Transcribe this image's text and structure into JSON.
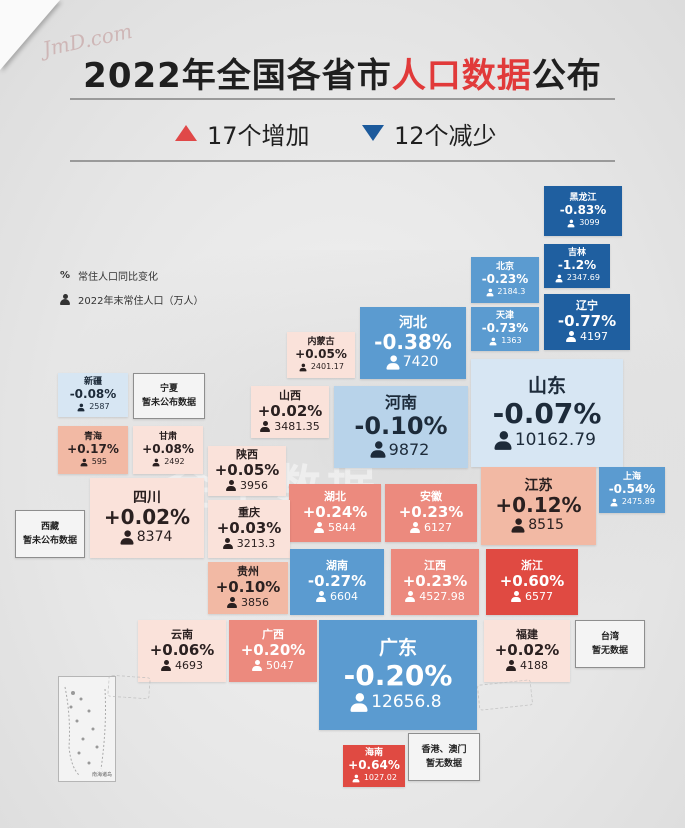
{
  "title": {
    "prefix": "2022年全国各省市",
    "highlight": "人口数据",
    "suffix": "公布"
  },
  "summary": {
    "increase": "17个增加",
    "decrease": "12个减少"
  },
  "legend": {
    "percent_symbol": "%",
    "percent_label": "常住人口同比变化",
    "pop_label": "2022年末常住人口（万人）"
  },
  "signature": "JmD.com",
  "watermark": "金十数据",
  "colors": {
    "decrease_dark": "#1f5fa0",
    "decrease_light": "#b8d3ea",
    "increase_light": "#fae2da",
    "increase_dark": "#e04a42"
  },
  "provinces": [
    {
      "id": "heilongjiang",
      "name": "黑龙江",
      "change": "-0.83%",
      "pop": "3099"
    },
    {
      "id": "jilin",
      "name": "吉林",
      "change": "-1.2%",
      "pop": "2347.69"
    },
    {
      "id": "beijing",
      "name": "北京",
      "change": "-0.23%",
      "pop": "2184.3"
    },
    {
      "id": "tianjin",
      "name": "天津",
      "change": "-0.73%",
      "pop": "1363"
    },
    {
      "id": "liaoning",
      "name": "辽宁",
      "change": "-0.77%",
      "pop": "4197"
    },
    {
      "id": "hebei",
      "name": "河北",
      "change": "-0.38%",
      "pop": "7420"
    },
    {
      "id": "neimenggu",
      "name": "内蒙古",
      "change": "+0.05%",
      "pop": "2401.17"
    },
    {
      "id": "xinjiang",
      "name": "新疆",
      "change": "-0.08%",
      "pop": "2587"
    },
    {
      "id": "shanxi",
      "name": "山西",
      "change": "+0.02%",
      "pop": "3481.35"
    },
    {
      "id": "henan",
      "name": "河南",
      "change": "-0.10%",
      "pop": "9872"
    },
    {
      "id": "shandong",
      "name": "山东",
      "change": "-0.07%",
      "pop": "10162.79"
    },
    {
      "id": "qinghai",
      "name": "青海",
      "change": "+0.17%",
      "pop": "595"
    },
    {
      "id": "gansu",
      "name": "甘肃",
      "change": "+0.08%",
      "pop": "2492"
    },
    {
      "id": "shaanxi",
      "name": "陕西",
      "change": "+0.05%",
      "pop": "3956"
    },
    {
      "id": "hubei",
      "name": "湖北",
      "change": "+0.24%",
      "pop": "5844"
    },
    {
      "id": "anhui",
      "name": "安徽",
      "change": "+0.23%",
      "pop": "6127"
    },
    {
      "id": "jiangsu",
      "name": "江苏",
      "change": "+0.12%",
      "pop": "8515"
    },
    {
      "id": "shanghai",
      "name": "上海",
      "change": "-0.54%",
      "pop": "2475.89"
    },
    {
      "id": "sichuan",
      "name": "四川",
      "change": "+0.02%",
      "pop": "8374"
    },
    {
      "id": "chongqing",
      "name": "重庆",
      "change": "+0.03%",
      "pop": "3213.3"
    },
    {
      "id": "guizhou",
      "name": "贵州",
      "change": "+0.10%",
      "pop": "3856"
    },
    {
      "id": "hunan",
      "name": "湖南",
      "change": "-0.27%",
      "pop": "6604"
    },
    {
      "id": "jiangxi",
      "name": "江西",
      "change": "+0.23%",
      "pop": "4527.98"
    },
    {
      "id": "zhejiang",
      "name": "浙江",
      "change": "+0.60%",
      "pop": "6577"
    },
    {
      "id": "yunnan",
      "name": "云南",
      "change": "+0.06%",
      "pop": "4693"
    },
    {
      "id": "guangxi",
      "name": "广西",
      "change": "+0.20%",
      "pop": "5047"
    },
    {
      "id": "guangdong",
      "name": "广东",
      "change": "-0.20%",
      "pop": "12656.8"
    },
    {
      "id": "fujian",
      "name": "福建",
      "change": "+0.02%",
      "pop": "4188"
    },
    {
      "id": "hainan",
      "name": "海南",
      "change": "+0.64%",
      "pop": "1027.02"
    }
  ],
  "no_data": [
    {
      "id": "ningxia",
      "name": "宁夏",
      "note": "暂未公布数据"
    },
    {
      "id": "xizang",
      "name": "西藏",
      "note": "暂未公布数据"
    },
    {
      "id": "taiwan",
      "name": "台湾",
      "note": "暂无数据"
    },
    {
      "id": "hkmo",
      "name": "香港、澳门",
      "note": "暂无数据"
    }
  ],
  "inset_label": "南海诸岛"
}
